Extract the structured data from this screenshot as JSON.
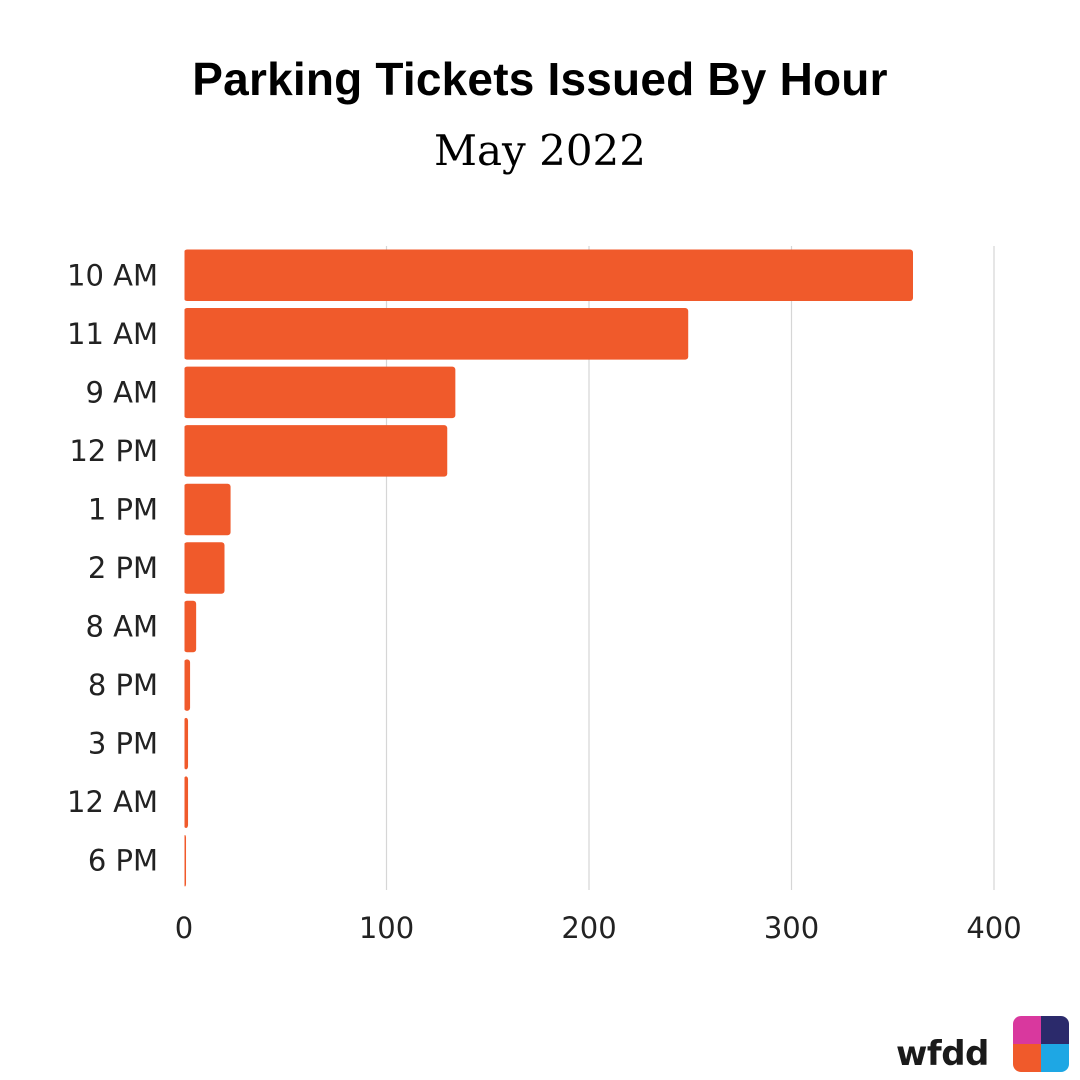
{
  "chart_data": {
    "type": "bar",
    "orientation": "horizontal",
    "title": "Parking Tickets Issued By Hour",
    "subtitle": "May 2022",
    "categories": [
      "10 AM",
      "11 AM",
      "9 AM",
      "12 PM",
      "1 PM",
      "2 PM",
      "8 AM",
      "8 PM",
      "3 PM",
      "12 AM",
      "6 PM"
    ],
    "values": [
      360,
      249,
      134,
      130,
      23,
      20,
      6,
      3,
      2,
      2,
      1
    ],
    "xlim": [
      0,
      400
    ],
    "xticks": [
      0,
      100,
      200,
      300,
      400
    ],
    "xlabel": "",
    "ylabel": "",
    "grid": true,
    "bar_color": "#f05a2b",
    "grid_color": "#d6d6d6"
  },
  "branding": {
    "text": "wfdd",
    "logo_colors": [
      "#d9389e",
      "#2b2a6b",
      "#f05a2b",
      "#1ea7e4"
    ]
  }
}
